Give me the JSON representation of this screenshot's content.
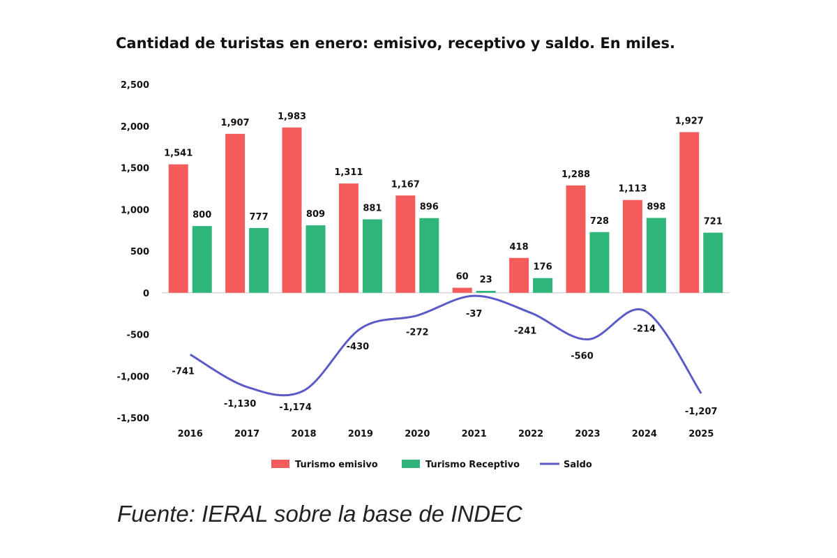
{
  "chart_data": {
    "type": "bar",
    "title": "Cantidad de turistas en enero: emisivo, receptivo y saldo. En miles.",
    "categories": [
      "2016",
      "2017",
      "2018",
      "2019",
      "2020",
      "2021",
      "2022",
      "2023",
      "2024",
      "2025"
    ],
    "series": [
      {
        "name": "Turismo emisivo",
        "type": "bar",
        "color": "#f45b5b",
        "values": [
          1541,
          1907,
          1983,
          1311,
          1167,
          60,
          418,
          1288,
          1113,
          1927
        ],
        "labels": [
          "1,541",
          "1,907",
          "1,983",
          "1,311",
          "1,167",
          "60",
          "418",
          "1,288",
          "1,113",
          "1,927"
        ]
      },
      {
        "name": "Turismo Receptivo",
        "type": "bar",
        "color": "#2fb57a",
        "values": [
          800,
          777,
          809,
          881,
          896,
          23,
          176,
          728,
          898,
          721
        ],
        "labels": [
          "800",
          "777",
          "809",
          "881",
          "896",
          "23",
          "176",
          "728",
          "898",
          "721"
        ]
      },
      {
        "name": "Saldo",
        "type": "line",
        "color": "#5b5bc8",
        "values": [
          -741,
          -1130,
          -1174,
          -430,
          -272,
          -37,
          -241,
          -560,
          -214,
          -1207
        ],
        "labels": [
          "-741",
          "-1,130",
          "-1,174",
          "-430",
          "-272",
          "-37",
          "-241",
          "-560",
          "-214",
          "-1,207"
        ]
      }
    ],
    "ylim": [
      -1500,
      2500
    ],
    "yticks": [
      2500,
      2000,
      1500,
      1000,
      500,
      0,
      -500,
      -1000,
      -1500
    ],
    "ytick_labels": [
      "2,500",
      "2,000",
      "1,500",
      "1,000",
      "500",
      "0",
      "-500",
      "-1,000",
      "-1,500"
    ],
    "grid": false,
    "legend_position": "bottom",
    "xlabel": "",
    "ylabel": ""
  },
  "source": "Fuente: IERAL sobre la base de INDEC"
}
